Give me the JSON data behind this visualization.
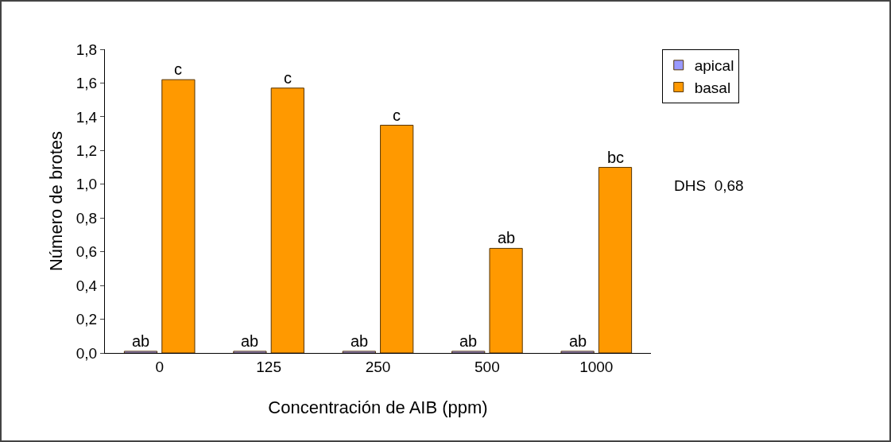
{
  "chart_data": {
    "type": "bar",
    "xlabel": "Concentración de AIB (ppm)",
    "ylabel": "Número de brotes",
    "categories": [
      "0",
      "125",
      "250",
      "500",
      "1000"
    ],
    "series": [
      {
        "name": "apical",
        "color": "#9999ff",
        "values": [
          0.01,
          0.01,
          0.01,
          0.01,
          0.01
        ]
      },
      {
        "name": "basal",
        "color": "#ff9900",
        "values": [
          1.62,
          1.57,
          1.35,
          0.62,
          1.1
        ]
      }
    ],
    "ylim": [
      0,
      1.8
    ],
    "yticks": [
      {
        "value": 0,
        "label": "0,0"
      },
      {
        "value": 0.2,
        "label": "0,2"
      },
      {
        "value": 0.4,
        "label": "0,4"
      },
      {
        "value": 0.6,
        "label": "0,6"
      },
      {
        "value": 0.8,
        "label": "0,8"
      },
      {
        "value": 1,
        "label": "1,0"
      },
      {
        "value": 1.2,
        "label": "1,2"
      },
      {
        "value": 1.4,
        "label": "1,4"
      },
      {
        "value": 1.6,
        "label": "1,6"
      },
      {
        "value": 1.8,
        "label": "1,8"
      }
    ],
    "grid": false,
    "legend": "top right",
    "annotations": [
      {
        "text": "ab",
        "x": "0",
        "y": 0.01
      },
      {
        "text": "ab",
        "x": "125",
        "y": 0.01
      },
      {
        "text": "ab",
        "x": "250",
        "y": 0.01
      },
      {
        "text": "ab",
        "x": "500",
        "y": 0.01
      },
      {
        "text": "ab",
        "x": "1000",
        "y": 0.01
      },
      {
        "text": "c",
        "x": "0",
        "y": 1.62
      },
      {
        "text": "c",
        "x": "125",
        "y": 1.57
      },
      {
        "text": "c",
        "x": "250",
        "y": 1.35
      },
      {
        "text": "ab",
        "x": "500",
        "y": 0.62
      },
      {
        "text": "bc",
        "x": "1000",
        "y": 1.1
      },
      "DHS  0,68"
    ]
  }
}
